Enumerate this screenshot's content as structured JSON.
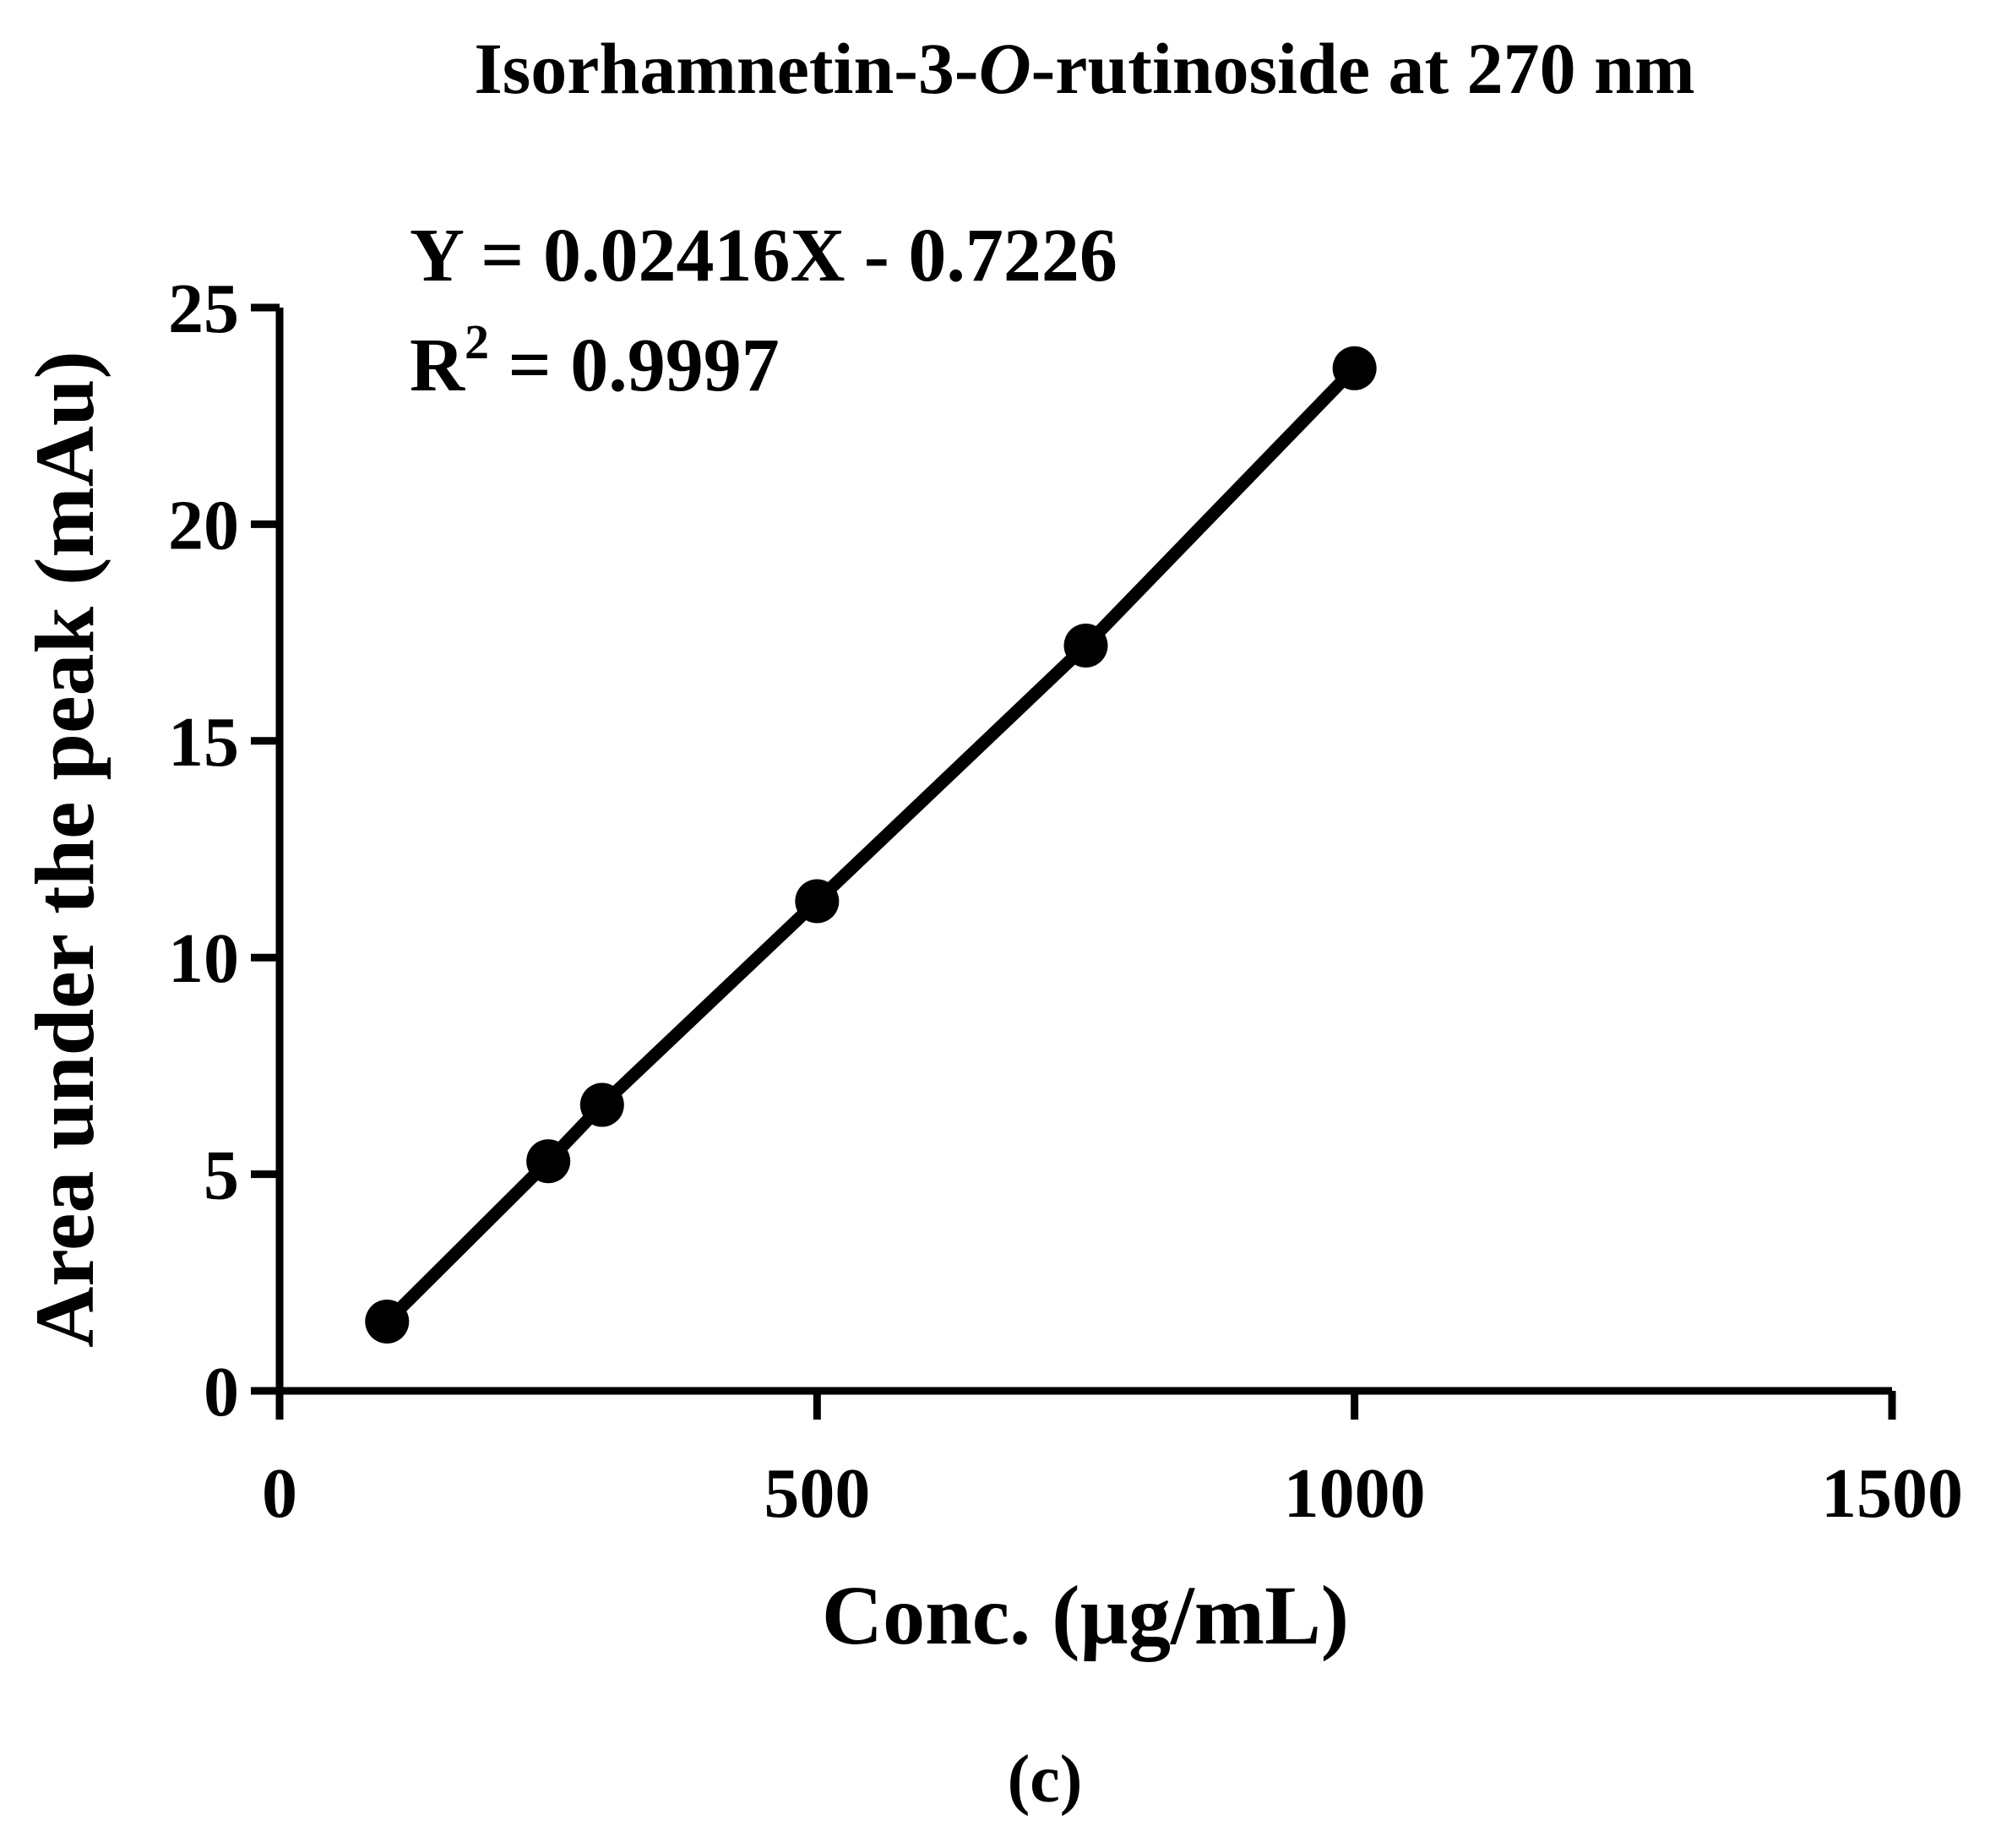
{
  "chart_data": {
    "type": "line",
    "title": {
      "prefix": "Isorhamnetin-3-",
      "italic": "O",
      "suffix": "-rutinoside at 270 nm"
    },
    "equation": "Y = 0.02416X - 0.7226",
    "r_squared": {
      "label": "R",
      "superscript": "2",
      "value_text": " = 0.9997"
    },
    "xlabel": "Conc. (µg/mL)",
    "ylabel": "Area under the peak (mAu)",
    "xlim": [
      0,
      1500
    ],
    "ylim": [
      0,
      25
    ],
    "xticks": [
      0,
      500,
      1000,
      1500
    ],
    "yticks": [
      0,
      5,
      10,
      15,
      20,
      25
    ],
    "grid": false,
    "series": [
      {
        "x": [
          100,
          250,
          300,
          500,
          750,
          1000
        ],
        "y": [
          1.6,
          5.3,
          6.6,
          11.3,
          17.2,
          23.6
        ],
        "color": "#000000",
        "marker": "circle"
      }
    ]
  },
  "panel_label": "(c)"
}
